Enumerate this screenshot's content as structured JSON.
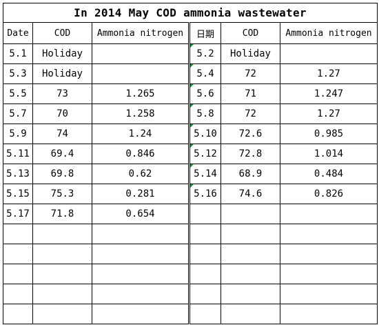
{
  "title": "In 2014 May COD ammonia wastewater",
  "headers": [
    "Date",
    "COD",
    "Ammonia nitrogen",
    "日期",
    "COD",
    "Ammonia nitrogen"
  ],
  "rows": [
    [
      "5.1",
      "Holiday",
      "",
      "5.2",
      "Holiday",
      ""
    ],
    [
      "5.3",
      "Holiday",
      "",
      "5.4",
      "72",
      "1.27"
    ],
    [
      "5.5",
      "73",
      "1.265",
      "5.6",
      "71",
      "1.247"
    ],
    [
      "5.7",
      "70",
      "1.258",
      "5.8",
      "72",
      "1.27"
    ],
    [
      "5.9",
      "74",
      "1.24",
      "5.10",
      "72.6",
      "0.985"
    ],
    [
      "5.11",
      "69.4",
      "0.846",
      "5.12",
      "72.8",
      "1.014"
    ],
    [
      "5.13",
      "69.8",
      "0.62",
      "5.14",
      "68.9",
      "0.484"
    ],
    [
      "5.15",
      "75.3",
      "0.281",
      "5.16",
      "74.6",
      "0.826"
    ],
    [
      "5.17",
      "71.8",
      "0.654",
      "",
      "",
      ""
    ],
    [
      "",
      "",
      "",
      "",
      "",
      ""
    ],
    [
      "",
      "",
      "",
      "",
      "",
      ""
    ],
    [
      "",
      "",
      "",
      "",
      "",
      ""
    ],
    [
      "",
      "",
      "",
      "",
      "",
      ""
    ],
    [
      "",
      "",
      "",
      "",
      "",
      ""
    ]
  ],
  "colors": {
    "grid": "#000000",
    "comment_marker": "#1f8a3a"
  }
}
